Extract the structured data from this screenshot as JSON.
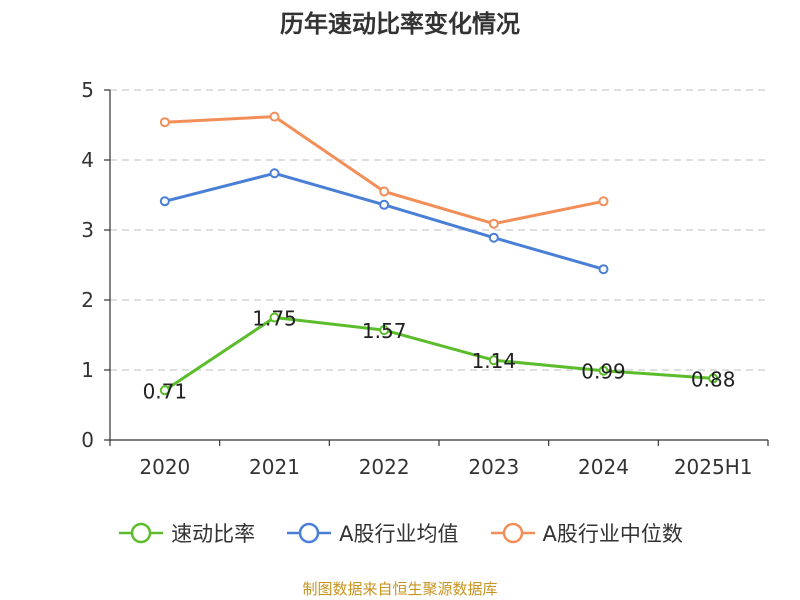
{
  "chart_data": {
    "type": "line",
    "title": "历年速动比率变化情况",
    "categories": [
      "2020",
      "2021",
      "2022",
      "2023",
      "2024",
      "2025H1"
    ],
    "y_ticks": [
      "0",
      "1",
      "2",
      "3",
      "4",
      "5"
    ],
    "ylim": [
      0,
      5
    ],
    "grid": true,
    "legend_position": "bottom",
    "series": [
      {
        "name": "速动比率",
        "color": "#5bbd2b",
        "values": [
          0.71,
          1.75,
          1.57,
          1.14,
          0.99,
          0.88
        ],
        "labels": [
          "0.71",
          "1.75",
          "1.57",
          "1.14",
          "0.99",
          "0.88"
        ]
      },
      {
        "name": "A股行业均值",
        "color": "#4a7fd6",
        "values": [
          3.41,
          3.81,
          3.36,
          2.89,
          2.44,
          null
        ]
      },
      {
        "name": "A股行业中位数",
        "color": "#f28f59",
        "values": [
          4.54,
          4.62,
          3.55,
          3.09,
          3.41,
          null
        ]
      }
    ]
  },
  "source": "制图数据来自恒生聚源数据库"
}
